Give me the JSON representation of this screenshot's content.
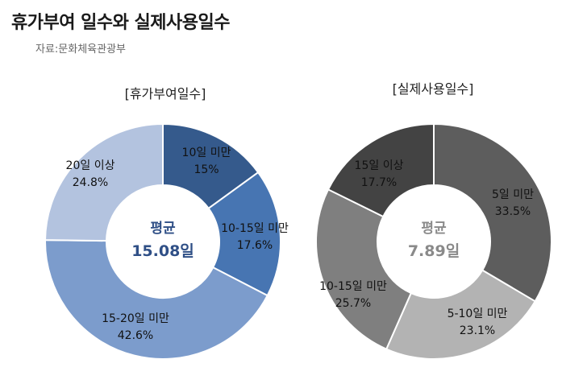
{
  "title": "휴가부여 일수와 실제사용일수",
  "source": "자료:문화체육관광부",
  "chart_data": [
    {
      "type": "pie",
      "title": "[휴가부여일수]",
      "center_label": "평균",
      "center_value": "15.08일",
      "slices": [
        {
          "label": "10일 미만",
          "value": 15,
          "display": "15%",
          "color": "#355a8c"
        },
        {
          "label": "10-15일 미만",
          "value": 17.6,
          "display": "17.6%",
          "color": "#4775b2"
        },
        {
          "label": "15-20일 미만",
          "value": 42.6,
          "display": "42.6%",
          "color": "#7c9ccc"
        },
        {
          "label": "20일 이상",
          "value": 24.8,
          "display": "24.8%",
          "color": "#b3c3df"
        }
      ],
      "text_color_center": "#2f4f86"
    },
    {
      "type": "pie",
      "title": "[실제사용일수]",
      "center_label": "평균",
      "center_value": "7.89일",
      "slices": [
        {
          "label": "5일 미만",
          "value": 33.5,
          "display": "33.5%",
          "color": "#5d5d5d"
        },
        {
          "label": "5-10일 미만",
          "value": 23.1,
          "display": "23.1%",
          "color": "#b3b3b3"
        },
        {
          "label": "10-15일 미만",
          "value": 25.7,
          "display": "25.7%",
          "color": "#7f7f7f"
        },
        {
          "label": "15일 이상",
          "value": 17.7,
          "display": "17.7%",
          "color": "#434343"
        }
      ],
      "text_color_center": "#8a8a8a"
    }
  ]
}
